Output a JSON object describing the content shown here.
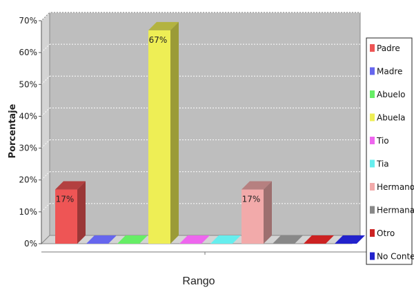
{
  "chart_data": {
    "type": "bar",
    "categories": [
      "Padre",
      "Madre",
      "Abuelo",
      "Abuela",
      "Tio",
      "Tia",
      "Hermano",
      "Hermana",
      "Otro",
      "No Contest"
    ],
    "values": [
      17,
      0,
      0,
      67,
      0,
      0,
      17,
      0,
      0,
      0
    ],
    "data_labels": [
      "17%",
      "",
      "",
      "67%",
      "",
      "",
      "17%",
      "",
      "",
      ""
    ],
    "colors": [
      "#ee5555",
      "#6666ee",
      "#66ee66",
      "#eeee55",
      "#ee66ee",
      "#66eeee",
      "#f2aaaa",
      "#888888",
      "#cc2222",
      "#2222cc"
    ],
    "xlabel": "Rango",
    "ylabel": "Porcentaje",
    "ylim": [
      0,
      70
    ],
    "yticks": [
      0,
      10,
      20,
      30,
      40,
      50,
      60,
      70
    ],
    "ytick_labels": [
      "0%",
      "10%",
      "20%",
      "30%",
      "40%",
      "50%",
      "60%",
      "70%"
    ],
    "grid": true,
    "legend": {
      "position": "right",
      "entries": [
        "Padre",
        "Madre",
        "Abuelo",
        "Abuela",
        "Tio",
        "Tia",
        "Hermano",
        "Hermana",
        "Otro",
        "No Contest"
      ]
    },
    "plot_background": "#bebebe",
    "three_d": true
  }
}
